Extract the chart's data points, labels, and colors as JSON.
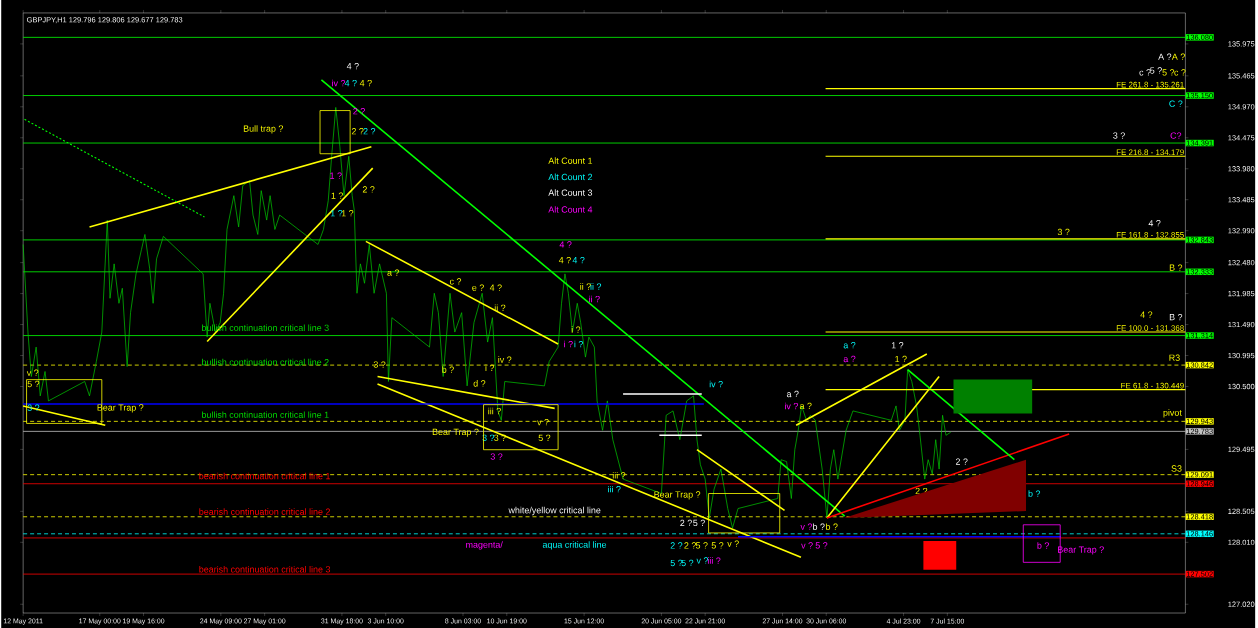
{
  "chart_data": {
    "type": "line",
    "title": "GBPJPY,H1  129.796 129.806 129.677 129.783",
    "xlim": [
      "2011-05-12T08:00",
      "2011-07-22T03:00"
    ],
    "ylim": [
      126.88,
      136.47
    ],
    "xticks": [
      {
        "value": "2011-05-12T08:00",
        "label": "12 May 2011"
      },
      {
        "value": "2011-05-17T00:00",
        "label": "17 May 00:00"
      },
      {
        "value": "2011-05-19T16:00",
        "label": "19 May 16:00"
      },
      {
        "value": "2011-05-24T09:00",
        "label": "24 May 09:00"
      },
      {
        "value": "2011-05-27T01:00",
        "label": "27 May 01:00"
      },
      {
        "value": "2011-05-31T18:00",
        "label": "31 May 18:00"
      },
      {
        "value": "2011-06-03T10:00",
        "label": "3 Jun 10:00"
      },
      {
        "value": "2011-06-08T03:00",
        "label": "8 Jun 03:00"
      },
      {
        "value": "2011-06-10T19:00",
        "label": "10 Jun 19:00"
      },
      {
        "value": "2011-06-15T12:00",
        "label": "15 Jun 12:00"
      },
      {
        "value": "2011-06-20T05:00",
        "label": "20 Jun 05:00"
      },
      {
        "value": "2011-06-22T21:00",
        "label": "22 Jun 21:00"
      },
      {
        "value": "2011-06-27T14:00",
        "label": "27 Jun 14:00"
      },
      {
        "value": "2011-06-30T06:00",
        "label": "30 Jun 06:00"
      },
      {
        "value": "2011-07-04T23:00",
        "label": "4 Jul 23:00"
      },
      {
        "value": "2011-07-07T15:00",
        "label": "7 Jul 15:00"
      }
    ],
    "yticks": [
      {
        "value": 127.02,
        "label": "127.020"
      },
      {
        "value": 128.01,
        "label": "128.010"
      },
      {
        "value": 128.505,
        "label": "128.505"
      },
      {
        "value": 129.495,
        "label": "129.495"
      },
      {
        "value": 130.5,
        "label": "130.500"
      },
      {
        "value": 130.995,
        "label": "130.995"
      },
      {
        "value": 131.49,
        "label": "131.490"
      },
      {
        "value": 131.985,
        "label": "131.985"
      },
      {
        "value": 132.48,
        "label": "132.480"
      },
      {
        "value": 132.99,
        "label": "132.990"
      },
      {
        "value": 133.485,
        "label": "133.485"
      },
      {
        "value": 133.98,
        "label": "133.980"
      },
      {
        "value": 134.475,
        "label": "134.475"
      },
      {
        "value": 134.97,
        "label": "134.970"
      },
      {
        "value": 135.465,
        "label": "135.465"
      },
      {
        "value": 135.975,
        "label": "135.975"
      }
    ],
    "series": [
      {
        "color": "#00cc00",
        "x": [
          "2011-05-12T08:00",
          "2011-05-12T15:00",
          "2011-05-12T20:00",
          "2011-05-13T03:00",
          "2011-05-13T09:00",
          "2011-05-13T16:00",
          "2011-05-13T21:00",
          "2011-05-16T02:00",
          "2011-05-16T09:00",
          "2011-05-16T19:00",
          "2011-05-17T03:00",
          "2011-05-17T11:00",
          "2011-05-17T15:00",
          "2011-05-17T21:00",
          "2011-05-18T04:00",
          "2011-05-18T09:00",
          "2011-05-18T16:00",
          "2011-05-18T21:00",
          "2011-05-19T05:00",
          "2011-05-19T13:00",
          "2011-05-19T18:00",
          "2011-05-20T01:00",
          "2011-05-20T06:00",
          "2011-05-20T11:00",
          "2011-05-20T21:00",
          "2011-05-23T07:00",
          "2011-05-23T13:00",
          "2011-05-23T17:00",
          "2011-05-24T01:00",
          "2011-05-24T08:00",
          "2011-05-24T13:00",
          "2011-05-24T18:00",
          "2011-05-25T04:00",
          "2011-05-25T11:00",
          "2011-05-25T17:00",
          "2011-05-26T03:00",
          "2011-05-26T08:00",
          "2011-05-26T15:00",
          "2011-05-26T20:00",
          "2011-05-27T04:00",
          "2011-05-27T09:00",
          "2011-05-27T16:00",
          "2011-05-27T23:00",
          "2011-05-30T07:00",
          "2011-05-30T15:00",
          "2011-05-30T22:00",
          "2011-05-31T03:00",
          "2011-05-31T09:00",
          "2011-05-31T15:00",
          "2011-05-31T21:00",
          "2011-06-01T04:00",
          "2011-06-01T09:00",
          "2011-06-01T12:00",
          "2011-06-01T16:00",
          "2011-06-01T21:00",
          "2011-06-02T03:00",
          "2011-06-02T10:00",
          "2011-06-02T17:00",
          "2011-06-03T01:00",
          "2011-06-03T11:00",
          "2011-06-03T14:00",
          "2011-06-03T19:00",
          "2011-06-06T02:00",
          "2011-06-06T09:00",
          "2011-06-06T15:00",
          "2011-06-06T22:00",
          "2011-06-07T08:00",
          "2011-06-07T15:00",
          "2011-06-08T01:00",
          "2011-06-08T09:00",
          "2011-06-08T19:00",
          "2011-06-09T07:00",
          "2011-06-09T15:00",
          "2011-06-09T22:00",
          "2011-06-10T06:00",
          "2011-06-10T11:00",
          "2011-06-10T16:00",
          "2011-06-13T02:00",
          "2011-06-13T09:00",
          "2011-06-13T22:00",
          "2011-06-14T03:00",
          "2011-06-14T08:00",
          "2011-06-14T13:00",
          "2011-06-14T19:00",
          "2011-06-15T02:00",
          "2011-06-15T07:00",
          "2011-06-15T14:00",
          "2011-06-15T19:00",
          "2011-06-16T03:00",
          "2011-06-16T07:00",
          "2011-06-16T15:00",
          "2011-06-16T22:00",
          "2011-06-17T06:00",
          "2011-06-17T21:00",
          "2011-06-20T05:00",
          "2011-06-20T12:00",
          "2011-06-20T22:00",
          "2011-06-21T08:00",
          "2011-06-21T18:00",
          "2011-06-22T04:00",
          "2011-06-22T09:00",
          "2011-06-22T14:00",
          "2011-06-22T21:00",
          "2011-06-23T03:00",
          "2011-06-23T10:00",
          "2011-06-23T20:00",
          "2011-06-24T06:00",
          "2011-06-24T13:00",
          "2011-06-24T21:00",
          "2011-06-27T07:00",
          "2011-06-27T12:00",
          "2011-06-27T20:00",
          "2011-06-28T03:00",
          "2011-06-28T08:00",
          "2011-06-28T13:00",
          "2011-06-28T18:00",
          "2011-06-29T01:00",
          "2011-06-29T07:00",
          "2011-06-29T14:00",
          "2011-06-30T00:00",
          "2011-06-30T07:00",
          "2011-06-30T12:00",
          "2011-06-30T17:00",
          "2011-06-30T23:00",
          "2011-07-01T11:00",
          "2011-07-01T21:00",
          "2011-07-04T05:00",
          "2011-07-04T12:00",
          "2011-07-04T17:00",
          "2011-07-05T01:00",
          "2011-07-05T05:00",
          "2011-07-05T11:00",
          "2011-07-05T18:00",
          "2011-07-05T23:00",
          "2011-07-06T06:00",
          "2011-07-06T11:00",
          "2011-07-06T17:00",
          "2011-07-06T22:00",
          "2011-07-07T03:00",
          "2011-07-07T08:00",
          "2011-07-07T13:00",
          "2011-07-07T20:00"
        ],
        "values": [
          132.77,
          131.37,
          130.66,
          131.13,
          130.35,
          130.74,
          130.27,
          130.58,
          130.35,
          130.9,
          131.37,
          133.16,
          131.91,
          132.46,
          131.83,
          132.07,
          130.82,
          131.68,
          132.3,
          132.69,
          132.93,
          132.38,
          131.83,
          132.54,
          132.9,
          132.3,
          131.29,
          131.83,
          131.37,
          131.52,
          131.99,
          133.01,
          133.55,
          133.05,
          133.71,
          133.79,
          133.24,
          132.93,
          133.63,
          133.16,
          133.55,
          133.01,
          133.24,
          132.77,
          133.01,
          133.47,
          134.18,
          134.96,
          134.33,
          133.55,
          134.18,
          133.55,
          133.32,
          131.99,
          132.46,
          132.15,
          132.77,
          131.99,
          132.46,
          131.99,
          130.58,
          131.6,
          131.13,
          131.99,
          131.68,
          130.66,
          131.99,
          131.37,
          131.68,
          130.51,
          131.52,
          131.99,
          131.21,
          131.6,
          130.11,
          129.96,
          130.58,
          130.51,
          130.9,
          131.13,
          131.83,
          132.3,
          131.99,
          131.37,
          131.83,
          131.52,
          130.97,
          131.29,
          131.13,
          130.27,
          129.8,
          130.27,
          129.65,
          129.02,
          128.79,
          130.04,
          130.11,
          129.65,
          130.27,
          130.35,
          129.65,
          129.25,
          129.02,
          128.4,
          128.86,
          129.18,
          128.55,
          128.24,
          128.55,
          128.71,
          129.33,
          129.3,
          128.71,
          129.49,
          129.8,
          130.19,
          129.96,
          130.04,
          129.96,
          129.18,
          128.4,
          129.18,
          129.49,
          129.02,
          129.8,
          130.11,
          129.96,
          130.19,
          129.8,
          129.96,
          130.77,
          130.58,
          130.19,
          129.72,
          129.02,
          129.33,
          129.1,
          129.65,
          129.18,
          130.04,
          129.72,
          129.77
        ]
      },
      {
        "color": "#00ff00",
        "x": [
          "2011-05-30T12:00",
          "2011-07-01T09:00"
        ],
        "values": [
          135.4,
          128.43
        ]
      },
      {
        "color": "#ffff00",
        "x": [
          "2011-05-16T09:00",
          "2011-06-02T13:00"
        ],
        "values": [
          133.05,
          134.33
        ]
      },
      {
        "color": "#ffff00",
        "x": [
          "2011-05-23T13:00",
          "2011-06-02T15:00"
        ],
        "values": [
          131.22,
          133.99
        ]
      },
      {
        "color": "#ffff00",
        "x": [
          "2011-06-02T05:00",
          "2011-06-13T22:00"
        ],
        "values": [
          132.82,
          131.18
        ]
      },
      {
        "color": "#ffff00",
        "x": [
          "2011-06-02T22:00",
          "2011-06-13T17:00"
        ],
        "values": [
          130.66,
          130.15
        ]
      },
      {
        "color": "#ffff00",
        "x": [
          "2011-06-02T22:00",
          "2011-06-28T17:00"
        ],
        "values": [
          130.54,
          127.77
        ]
      },
      {
        "color": "#ffff00",
        "x": [
          "2011-06-22T09:00",
          "2011-06-27T17:00"
        ],
        "values": [
          129.49,
          128.52
        ]
      },
      {
        "color": "#ffff00",
        "x": [
          "2011-06-28T10:00",
          "2011-07-06T09:00"
        ],
        "values": [
          129.88,
          131.02
        ]
      },
      {
        "color": "#ffff00",
        "x": [
          "2011-06-30T07:00",
          "2011-07-07T03:00"
        ],
        "values": [
          128.4,
          130.66
        ]
      },
      {
        "color": "#ff0000",
        "x": [
          "2011-06-30T07:00",
          "2011-07-15T01:00"
        ],
        "values": [
          128.4,
          129.74
        ]
      },
      {
        "color": "#00ff00",
        "x": [
          "2011-07-05T05:00",
          "2011-07-11T17:00"
        ],
        "values": [
          130.77,
          129.33
        ]
      },
      {
        "color": "#00ff00",
        "x": [
          "2011-05-12T10:00",
          "2011-05-23T09:00"
        ],
        "values": [
          134.77,
          133.21
        ],
        "line_style": "dotted"
      },
      {
        "color": "#ffffff",
        "x": [
          "2011-06-17T21:00",
          "2011-06-22T16:00"
        ],
        "values": [
          130.38,
          130.38
        ]
      },
      {
        "color": "#ffffff",
        "x": [
          "2011-06-20T02:00",
          "2011-06-22T16:00"
        ],
        "values": [
          129.72,
          129.72
        ]
      },
      {
        "color": "#0000ff",
        "x": [
          "2011-05-12T08:00",
          "2011-06-22T19:00"
        ],
        "values": [
          130.22,
          130.22
        ]
      },
      {
        "color": "#0000ff",
        "x": [
          "2011-06-24T21:00",
          "2011-07-14T13:00"
        ],
        "values": [
          128.1,
          128.1
        ]
      },
      {
        "color": "#ffff00",
        "x": [
          "2011-05-12T08:00",
          "2011-05-17T08:00"
        ],
        "values": [
          130.19,
          129.88
        ]
      },
      {
        "name": "FE 261.8 - 135.261",
        "color": "#ffff00",
        "x": [
          "2011-06-30T05:00",
          "2011-07-22T03:00"
        ],
        "values": [
          135.26,
          135.26
        ]
      },
      {
        "name": "FE 216.8 - 134.179",
        "color": "#ffff00",
        "x": [
          "2011-06-30T05:00",
          "2011-07-22T03:00"
        ],
        "values": [
          134.18,
          134.18
        ]
      },
      {
        "name": "FE 161.8 - 132.855",
        "color": "#ffff00",
        "x": [
          "2011-06-30T05:00",
          "2011-07-22T03:00"
        ],
        "values": [
          132.86,
          132.86
        ]
      },
      {
        "name": "FE 100.0 - 131.368",
        "color": "#ffff00",
        "x": [
          "2011-06-30T05:00",
          "2011-07-22T03:00"
        ],
        "values": [
          131.37,
          131.37
        ]
      },
      {
        "name": "FE 61.8 - 130.449",
        "color": "#ffff00",
        "x": [
          "2011-06-30T05:00",
          "2011-07-22T03:00"
        ],
        "values": [
          130.45,
          130.45
        ]
      }
    ],
    "ref_lines": [
      {
        "axis": "y",
        "value": 136.08,
        "label": "136.080",
        "color": "#00ff00"
      },
      {
        "axis": "y",
        "value": 135.15,
        "label": "135.150",
        "color": "#00ff00"
      },
      {
        "axis": "y",
        "value": 134.391,
        "label": "134.391",
        "color": "#00ff00"
      },
      {
        "axis": "y",
        "value": 132.843,
        "label": "132.843",
        "color": "#00ff00"
      },
      {
        "axis": "y",
        "value": 132.333,
        "label": "132.333",
        "color": "#00ff00"
      },
      {
        "axis": "y",
        "value": 131.314,
        "label": "131.314",
        "color": "#00ff00"
      },
      {
        "axis": "y",
        "value": 130.842,
        "label": "130.842",
        "color": "#ffff00",
        "line_style": "dashed"
      },
      {
        "axis": "y",
        "value": 129.943,
        "label": "129.943",
        "color": "#ffff00",
        "line_style": "dashed"
      },
      {
        "axis": "y",
        "value": 129.783,
        "label": "129.783",
        "color": "#c0c0c0"
      },
      {
        "axis": "y",
        "value": 129.091,
        "label": "129.091",
        "color": "#ffff00",
        "line_style": "dashed"
      },
      {
        "axis": "y",
        "value": 128.946,
        "label": "128.946",
        "color": "#ff0000"
      },
      {
        "axis": "y",
        "value": 128.418,
        "label": "128.418",
        "color": "#ffff00",
        "line_style": "dashed"
      },
      {
        "axis": "y",
        "value": 128.146,
        "label": "128.146",
        "color": "#00ffff",
        "line_style": "dashed"
      },
      {
        "axis": "y",
        "value": 128.08,
        "color": "#ff0000"
      },
      {
        "axis": "y",
        "value": 127.502,
        "label": "127.502",
        "color": "#ff0000"
      }
    ],
    "annotations": [
      "4 ?",
      "iv ?",
      "4 ?",
      "4 ?",
      "Bull trap ?",
      "2 ?",
      "2 ?",
      "2 ?",
      "1 ?",
      "1 ?",
      "1 ?",
      "1 ?",
      "2 ?",
      "v ?",
      "5 ?",
      {
        "text": "3 ?",
        "x": "2011-05-12T23:00",
        "y": 130.16
      },
      "Bear Trap ?",
      "a ?",
      "3 ?",
      "c ?",
      "e ?",
      "4 ?",
      "ii ?",
      "b ?",
      "d ?",
      "i ?",
      "iv ?",
      "4 ?",
      "4 ?",
      "4 ?",
      "ii ?",
      "ii ?",
      "ii ?",
      "i ?",
      "i ?",
      "i ?",
      "iii ?",
      "v ?",
      "3 ?",
      "3 ?",
      "5 ?",
      "3 ?",
      "Bear Trap ?",
      "iv ?",
      "iii ?",
      "iii ?",
      "Bear Trap ?",
      "2 ?",
      "5 ?",
      "2 ?",
      "2 ?",
      "5 ?",
      "5 ?",
      "v ?",
      "5 ?",
      "5 ?",
      "v ?",
      "iii ?",
      "white/yellow critical line",
      "magenta/",
      "aqua critical line",
      "bullish continuation critical line 3",
      "bullish continuation critical line 2",
      "bullish continuation critical line 1",
      "bearish continuation critical line 1",
      "bearish continuation critical line 2",
      "bearish continuation critical line 3",
      "a ?",
      "iv ?",
      "a ?",
      "a ?",
      "1 ?",
      "a ?",
      "1 ?",
      "v ?",
      "b ?",
      "b ?",
      "v ?",
      "5 ?",
      "2 ?",
      "2 ?",
      "b ?",
      "b ?",
      "Bear Trap ?",
      "A ?",
      "A ?",
      "c ?",
      "5 ?",
      "5 ?",
      "c ?",
      "C ?",
      "C?",
      "3 ?",
      "4 ?",
      "3 ?",
      "B ?",
      "4 ?",
      "B ?",
      "R3",
      "pivot",
      "S3",
      "Alt Count 1",
      "Alt Count 2",
      "Alt Count 3",
      "Alt Count 4"
    ]
  }
}
